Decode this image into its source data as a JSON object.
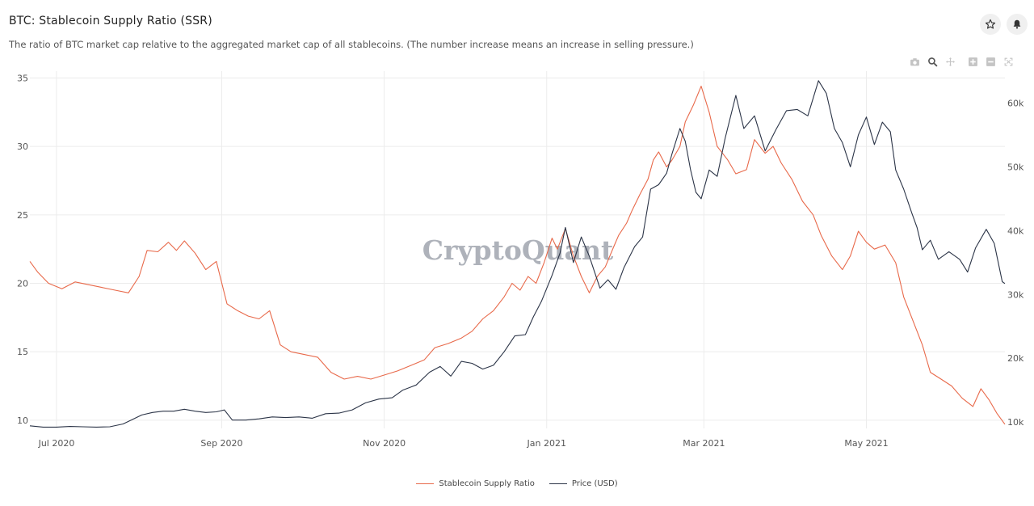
{
  "header": {
    "title": "BTC: Stablecoin Supply Ratio (SSR)",
    "subtitle": "The ratio of BTC market cap relative to the aggregated market cap of all stablecoins. (The number increase means an increase in selling pressure.)",
    "favorite_icon": "star-icon",
    "alert_icon": "bell-icon"
  },
  "toolbar": {
    "icons": [
      "camera-icon",
      "zoom-icon",
      "pan-icon",
      "zoom-in-icon",
      "zoom-out-icon",
      "autoscale-icon"
    ]
  },
  "watermark": "CryptoQuant",
  "colors": {
    "ssr": "#e8694a",
    "price": "#2b3447",
    "grid": "#ececec"
  },
  "chart_data": {
    "type": "line",
    "x_ticks": [
      "Jul 2020",
      "Sep 2020",
      "Nov 2020",
      "Jan 2021",
      "Mar 2021",
      "May 2021"
    ],
    "x_tick_dates": [
      "2020-07-01",
      "2020-09-01",
      "2020-11-01",
      "2021-01-01",
      "2021-03-01",
      "2021-05-01"
    ],
    "x_range": [
      "2020-06-21",
      "2021-06-22"
    ],
    "y_left": {
      "ticks": [
        10,
        15,
        20,
        25,
        30,
        35
      ],
      "range": [
        9.4,
        35.5
      ]
    },
    "y_right": {
      "ticks": [
        10000,
        20000,
        30000,
        40000,
        50000,
        60000
      ],
      "tick_labels": [
        "10k",
        "20k",
        "30k",
        "40k",
        "50k",
        "60k"
      ],
      "range": [
        9000,
        65000
      ]
    },
    "grid": true,
    "legend_position": "bottom-center",
    "series": [
      {
        "name": "Stablecoin Supply Ratio",
        "axis": "left",
        "points": [
          [
            "2020-06-21",
            21.6
          ],
          [
            "2020-06-24",
            20.8
          ],
          [
            "2020-06-28",
            20.0
          ],
          [
            "2020-07-03",
            19.6
          ],
          [
            "2020-07-08",
            20.1
          ],
          [
            "2020-07-13",
            19.9
          ],
          [
            "2020-07-18",
            19.7
          ],
          [
            "2020-07-23",
            19.5
          ],
          [
            "2020-07-28",
            19.3
          ],
          [
            "2020-08-01",
            20.5
          ],
          [
            "2020-08-04",
            22.4
          ],
          [
            "2020-08-08",
            22.3
          ],
          [
            "2020-08-12",
            23.0
          ],
          [
            "2020-08-15",
            22.4
          ],
          [
            "2020-08-18",
            23.1
          ],
          [
            "2020-08-22",
            22.2
          ],
          [
            "2020-08-26",
            21.0
          ],
          [
            "2020-08-30",
            21.6
          ],
          [
            "2020-09-03",
            18.5
          ],
          [
            "2020-09-07",
            18.0
          ],
          [
            "2020-09-11",
            17.6
          ],
          [
            "2020-09-15",
            17.4
          ],
          [
            "2020-09-19",
            18.0
          ],
          [
            "2020-09-23",
            15.5
          ],
          [
            "2020-09-27",
            15.0
          ],
          [
            "2020-10-02",
            14.8
          ],
          [
            "2020-10-07",
            14.6
          ],
          [
            "2020-10-12",
            13.5
          ],
          [
            "2020-10-17",
            13.0
          ],
          [
            "2020-10-22",
            13.2
          ],
          [
            "2020-10-27",
            13.0
          ],
          [
            "2020-11-01",
            13.3
          ],
          [
            "2020-11-06",
            13.6
          ],
          [
            "2020-11-11",
            14.0
          ],
          [
            "2020-11-16",
            14.4
          ],
          [
            "2020-11-20",
            15.3
          ],
          [
            "2020-11-25",
            15.6
          ],
          [
            "2020-11-30",
            16.0
          ],
          [
            "2020-12-04",
            16.5
          ],
          [
            "2020-12-08",
            17.4
          ],
          [
            "2020-12-12",
            18.0
          ],
          [
            "2020-12-16",
            19.0
          ],
          [
            "2020-12-19",
            20.0
          ],
          [
            "2020-12-22",
            19.5
          ],
          [
            "2020-12-25",
            20.5
          ],
          [
            "2020-12-28",
            20.0
          ],
          [
            "2020-12-31",
            21.5
          ],
          [
            "2021-01-03",
            23.3
          ],
          [
            "2021-01-05",
            22.5
          ],
          [
            "2021-01-08",
            24.0
          ],
          [
            "2021-01-11",
            22.0
          ],
          [
            "2021-01-14",
            20.5
          ],
          [
            "2021-01-17",
            19.3
          ],
          [
            "2021-01-20",
            20.5
          ],
          [
            "2021-01-23",
            21.2
          ],
          [
            "2021-01-26",
            22.6
          ],
          [
            "2021-01-28",
            23.5
          ],
          [
            "2021-01-31",
            24.4
          ],
          [
            "2021-02-02",
            25.3
          ],
          [
            "2021-02-05",
            26.5
          ],
          [
            "2021-02-08",
            27.6
          ],
          [
            "2021-02-10",
            29.0
          ],
          [
            "2021-02-12",
            29.6
          ],
          [
            "2021-02-15",
            28.5
          ],
          [
            "2021-02-17",
            29.0
          ],
          [
            "2021-02-20",
            30.0
          ],
          [
            "2021-02-22",
            31.8
          ],
          [
            "2021-02-25",
            33.0
          ],
          [
            "2021-02-28",
            34.4
          ],
          [
            "2021-03-03",
            32.5
          ],
          [
            "2021-03-06",
            30.0
          ],
          [
            "2021-03-10",
            29.0
          ],
          [
            "2021-03-13",
            28.0
          ],
          [
            "2021-03-17",
            28.3
          ],
          [
            "2021-03-20",
            30.5
          ],
          [
            "2021-03-24",
            29.5
          ],
          [
            "2021-03-27",
            30.0
          ],
          [
            "2021-03-30",
            28.8
          ],
          [
            "2021-04-03",
            27.6
          ],
          [
            "2021-04-07",
            26.0
          ],
          [
            "2021-04-11",
            25.0
          ],
          [
            "2021-04-14",
            23.5
          ],
          [
            "2021-04-18",
            22.0
          ],
          [
            "2021-04-22",
            21.0
          ],
          [
            "2021-04-25",
            22.0
          ],
          [
            "2021-04-28",
            23.8
          ],
          [
            "2021-05-01",
            23.0
          ],
          [
            "2021-05-04",
            22.5
          ],
          [
            "2021-05-08",
            22.8
          ],
          [
            "2021-05-12",
            21.5
          ],
          [
            "2021-05-15",
            19.0
          ],
          [
            "2021-05-18",
            17.5
          ],
          [
            "2021-05-22",
            15.5
          ],
          [
            "2021-05-25",
            13.5
          ],
          [
            "2021-05-29",
            13.0
          ],
          [
            "2021-06-02",
            12.5
          ],
          [
            "2021-06-06",
            11.6
          ],
          [
            "2021-06-10",
            11.0
          ],
          [
            "2021-06-13",
            12.3
          ],
          [
            "2021-06-16",
            11.5
          ],
          [
            "2021-06-19",
            10.5
          ],
          [
            "2021-06-22",
            9.7
          ]
        ]
      },
      {
        "name": "Price (USD)",
        "axis": "right",
        "points": [
          [
            "2020-06-21",
            9400
          ],
          [
            "2020-06-26",
            9200
          ],
          [
            "2020-07-01",
            9200
          ],
          [
            "2020-07-06",
            9300
          ],
          [
            "2020-07-11",
            9250
          ],
          [
            "2020-07-16",
            9200
          ],
          [
            "2020-07-21",
            9250
          ],
          [
            "2020-07-26",
            9700
          ],
          [
            "2020-07-29",
            10300
          ],
          [
            "2020-08-02",
            11100
          ],
          [
            "2020-08-06",
            11500
          ],
          [
            "2020-08-10",
            11700
          ],
          [
            "2020-08-14",
            11700
          ],
          [
            "2020-08-18",
            12000
          ],
          [
            "2020-08-22",
            11700
          ],
          [
            "2020-08-26",
            11500
          ],
          [
            "2020-08-30",
            11600
          ],
          [
            "2020-09-02",
            11900
          ],
          [
            "2020-09-05",
            10300
          ],
          [
            "2020-09-10",
            10300
          ],
          [
            "2020-09-15",
            10500
          ],
          [
            "2020-09-20",
            10800
          ],
          [
            "2020-09-25",
            10700
          ],
          [
            "2020-09-30",
            10800
          ],
          [
            "2020-10-05",
            10600
          ],
          [
            "2020-10-10",
            11300
          ],
          [
            "2020-10-15",
            11400
          ],
          [
            "2020-10-20",
            11900
          ],
          [
            "2020-10-25",
            13000
          ],
          [
            "2020-10-30",
            13600
          ],
          [
            "2020-11-04",
            13800
          ],
          [
            "2020-11-08",
            15000
          ],
          [
            "2020-11-13",
            15800
          ],
          [
            "2020-11-18",
            17800
          ],
          [
            "2020-11-22",
            18700
          ],
          [
            "2020-11-26",
            17200
          ],
          [
            "2020-11-30",
            19500
          ],
          [
            "2020-12-04",
            19200
          ],
          [
            "2020-12-08",
            18300
          ],
          [
            "2020-12-12",
            18900
          ],
          [
            "2020-12-16",
            21000
          ],
          [
            "2020-12-20",
            23500
          ],
          [
            "2020-12-24",
            23700
          ],
          [
            "2020-12-27",
            26500
          ],
          [
            "2020-12-30",
            28900
          ],
          [
            "2021-01-03",
            33000
          ],
          [
            "2021-01-06",
            36500
          ],
          [
            "2021-01-08",
            40500
          ],
          [
            "2021-01-11",
            35000
          ],
          [
            "2021-01-14",
            39000
          ],
          [
            "2021-01-17",
            36000
          ],
          [
            "2021-01-21",
            31000
          ],
          [
            "2021-01-24",
            32300
          ],
          [
            "2021-01-27",
            30800
          ],
          [
            "2021-01-30",
            34200
          ],
          [
            "2021-02-03",
            37500
          ],
          [
            "2021-02-06",
            39000
          ],
          [
            "2021-02-09",
            46500
          ],
          [
            "2021-02-12",
            47200
          ],
          [
            "2021-02-15",
            49000
          ],
          [
            "2021-02-17",
            52000
          ],
          [
            "2021-02-20",
            56000
          ],
          [
            "2021-02-22",
            54000
          ],
          [
            "2021-02-24",
            49500
          ],
          [
            "2021-02-26",
            46000
          ],
          [
            "2021-02-28",
            45000
          ],
          [
            "2021-03-03",
            49500
          ],
          [
            "2021-03-06",
            48500
          ],
          [
            "2021-03-09",
            54500
          ],
          [
            "2021-03-13",
            61200
          ],
          [
            "2021-03-16",
            56000
          ],
          [
            "2021-03-20",
            58000
          ],
          [
            "2021-03-24",
            52500
          ],
          [
            "2021-03-28",
            55800
          ],
          [
            "2021-04-01",
            58800
          ],
          [
            "2021-04-05",
            59000
          ],
          [
            "2021-04-09",
            58000
          ],
          [
            "2021-04-13",
            63500
          ],
          [
            "2021-04-16",
            61500
          ],
          [
            "2021-04-19",
            56000
          ],
          [
            "2021-04-22",
            53800
          ],
          [
            "2021-04-25",
            50000
          ],
          [
            "2021-04-28",
            55000
          ],
          [
            "2021-05-01",
            57800
          ],
          [
            "2021-05-04",
            53500
          ],
          [
            "2021-05-07",
            57000
          ],
          [
            "2021-05-10",
            55500
          ],
          [
            "2021-05-12",
            49500
          ],
          [
            "2021-05-15",
            46500
          ],
          [
            "2021-05-18",
            42800
          ],
          [
            "2021-05-20",
            40500
          ],
          [
            "2021-05-22",
            37000
          ],
          [
            "2021-05-25",
            38500
          ],
          [
            "2021-05-28",
            35500
          ],
          [
            "2021-06-01",
            36700
          ],
          [
            "2021-06-05",
            35500
          ],
          [
            "2021-06-08",
            33500
          ],
          [
            "2021-06-11",
            37300
          ],
          [
            "2021-06-15",
            40200
          ],
          [
            "2021-06-18",
            38000
          ],
          [
            "2021-06-21",
            32000
          ],
          [
            "2021-06-22",
            31700
          ]
        ]
      }
    ]
  }
}
